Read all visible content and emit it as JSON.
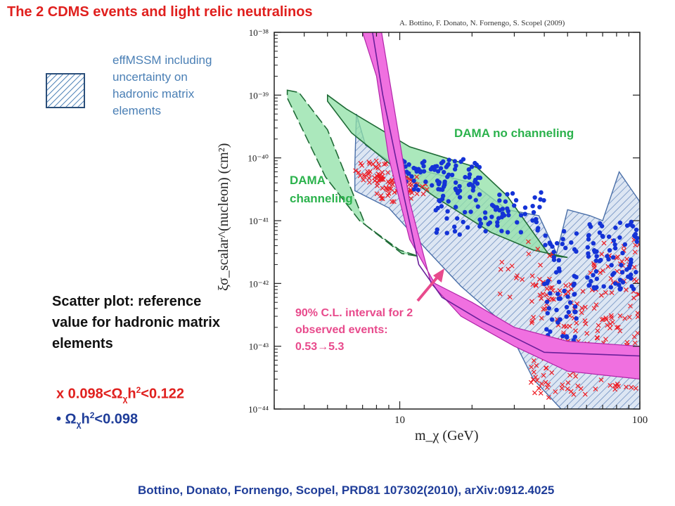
{
  "slide": {
    "title": "The 2 CDMS events and light relic neutralinos",
    "legend_text": "effMSSM including uncertainty on hadronic matrix elements",
    "scatter_heading": "Scatter plot: reference value for hadronic matrix elements",
    "mark_red": {
      "prefix": "x  0.098<Ω",
      "sub1": "χ",
      "mid": "h",
      "sup": "2",
      "suffix": "<0.122"
    },
    "mark_blue": {
      "prefix": "• Ω",
      "sub1": "χ",
      "mid": "h",
      "sup": "2",
      "suffix": "<0.098"
    },
    "citation": "Bottino, Donato, Fornengo, Scopel, PRD81 107302(2010), arXiv:0912.4025",
    "annotations": {
      "dama_channeling": [
        "DAMA",
        "channeling"
      ],
      "dama_no_channeling": "DAMA no channeling",
      "cl_lines": [
        "90% C.L. interval for 2",
        "observed events:",
        "0.53→5.3"
      ]
    },
    "colors": {
      "title": "#e0201e",
      "legend": "#4a7fb5",
      "dama": "#2bb24c",
      "cdms": "#e84a8c",
      "blue_points": "#1f3d99"
    }
  },
  "chart_data": {
    "type": "scatter",
    "authors_header": "A. Bottino, F. Donato, N. Fornengo, S. Scopel   (2009)",
    "xlabel": "m_χ   (GeV)",
    "ylabel": "ξσ_scalar^(nucleon)   (cm²)",
    "x_scale": "log",
    "y_scale": "log",
    "xlim": [
      3,
      100
    ],
    "ylim": [
      1e-44,
      1e-38
    ],
    "x_tick_labels": [
      "10",
      "100"
    ],
    "y_tick_labels": [
      "10⁻³⁸",
      "10⁻³⁹",
      "10⁻⁴⁰",
      "10⁻⁴¹",
      "10⁻⁴²",
      "10⁻⁴³",
      "10⁻⁴⁴"
    ],
    "series": [
      {
        "name": "effMSSM including uncertainty on hadronic matrix elements",
        "kind": "hatched_region",
        "boundary": [
          [
            6.5,
            8e-41
          ],
          [
            6.6,
            5e-40
          ],
          [
            7.2,
            1.6e-40
          ],
          [
            9,
            9e-41
          ],
          [
            13,
            6e-41
          ],
          [
            20,
            4e-41
          ],
          [
            28,
            1.5e-41
          ],
          [
            38,
            1.2e-41
          ],
          [
            45,
            3e-42
          ],
          [
            50,
            1.5e-41
          ],
          [
            62,
            1.2e-41
          ],
          [
            70,
            1e-41
          ],
          [
            82,
            6e-41
          ],
          [
            100,
            2e-41
          ],
          [
            100,
            1e-44
          ],
          [
            47,
            1e-44
          ],
          [
            36,
            3e-44
          ],
          [
            30,
            1.2e-43
          ],
          [
            25,
            3e-43
          ],
          [
            18,
            9e-43
          ],
          [
            13,
            3.4e-42
          ],
          [
            9,
            1.6e-41
          ],
          [
            6.5,
            3e-41
          ]
        ]
      },
      {
        "name": "DAMA channeling",
        "kind": "region",
        "boundary": [
          [
            3.4,
            1.2e-39
          ],
          [
            3.8,
            1.1e-39
          ],
          [
            5,
            2.8e-40
          ],
          [
            7.2,
            8.5e-42
          ],
          [
            10.2,
            3e-42
          ],
          [
            12,
            2.7e-42
          ],
          [
            10,
            3.4e-42
          ],
          [
            6.8,
            1e-41
          ],
          [
            4.9,
            5e-41
          ],
          [
            3.4,
            9e-40
          ]
        ]
      },
      {
        "name": "DAMA no channeling",
        "kind": "region",
        "boundary": [
          [
            5,
            1e-39
          ],
          [
            6,
            6e-40
          ],
          [
            11,
            1.5e-40
          ],
          [
            21,
            7e-41
          ],
          [
            28,
            2.5e-41
          ],
          [
            42,
            2.8e-42
          ],
          [
            50,
            2.6e-42
          ],
          [
            36,
            3.4e-42
          ],
          [
            24,
            6.5e-42
          ],
          [
            14,
            2.4e-41
          ],
          [
            10,
            6e-41
          ],
          [
            6.3,
            2.5e-40
          ],
          [
            5,
            8e-40
          ]
        ]
      },
      {
        "name": "90% C.L. interval for 2 observed events: 0.53→5.3",
        "kind": "band",
        "upper": [
          [
            7,
            1e-38
          ],
          [
            8,
            2e-39
          ],
          [
            9,
            1e-40
          ],
          [
            11,
            5e-42
          ],
          [
            14,
            1e-42
          ],
          [
            20,
            5e-43
          ],
          [
            30,
            2e-43
          ],
          [
            50,
            1.2e-43
          ],
          [
            100,
            1e-43
          ]
        ],
        "central": [
          [
            7.7,
            1e-38
          ],
          [
            8.5,
            1e-39
          ],
          [
            10,
            5e-41
          ],
          [
            12,
            2e-42
          ],
          [
            15,
            6e-43
          ],
          [
            22,
            2.5e-43
          ],
          [
            40,
            8e-44
          ],
          [
            100,
            7e-44
          ]
        ],
        "lower": [
          [
            8.4,
            1e-38
          ],
          [
            9.5,
            6e-40
          ],
          [
            11,
            2e-41
          ],
          [
            13.5,
            1e-42
          ],
          [
            18,
            3e-43
          ],
          [
            30,
            1e-43
          ],
          [
            50,
            4e-44
          ],
          [
            100,
            3e-44
          ]
        ]
      },
      {
        "name": "x  0.098<Ωχh²<0.122",
        "kind": "points",
        "marker": "x",
        "clusters": [
          {
            "x": [
              6.5,
              9
            ],
            "y": [
              4e-41,
              9e-41
            ],
            "n": 40
          },
          {
            "x": [
              8,
              13
            ],
            "y": [
              2e-41,
              5e-41
            ],
            "n": 55
          },
          {
            "x": [
              35,
              60
            ],
            "y": [
              1.5e-44,
              1e-42
            ],
            "n": 110
          },
          {
            "x": [
              60,
              100
            ],
            "y": [
              2e-44,
              5e-42
            ],
            "n": 110
          },
          {
            "x": [
              25,
              45
            ],
            "y": [
              5e-43,
              5e-42
            ],
            "n": 25
          }
        ]
      },
      {
        "name": "• Ωχh²<0.098",
        "kind": "points",
        "marker": "dot",
        "clusters": [
          {
            "x": [
              10,
              22
            ],
            "y": [
              3e-41,
              1e-40
            ],
            "n": 90
          },
          {
            "x": [
              14,
              40
            ],
            "y": [
              6e-42,
              3e-41
            ],
            "n": 80
          },
          {
            "x": [
              40,
              55
            ],
            "y": [
              1e-43,
              8e-42
            ],
            "n": 60
          },
          {
            "x": [
              60,
              100
            ],
            "y": [
              8e-43,
              1e-41
            ],
            "n": 80
          }
        ]
      }
    ]
  }
}
